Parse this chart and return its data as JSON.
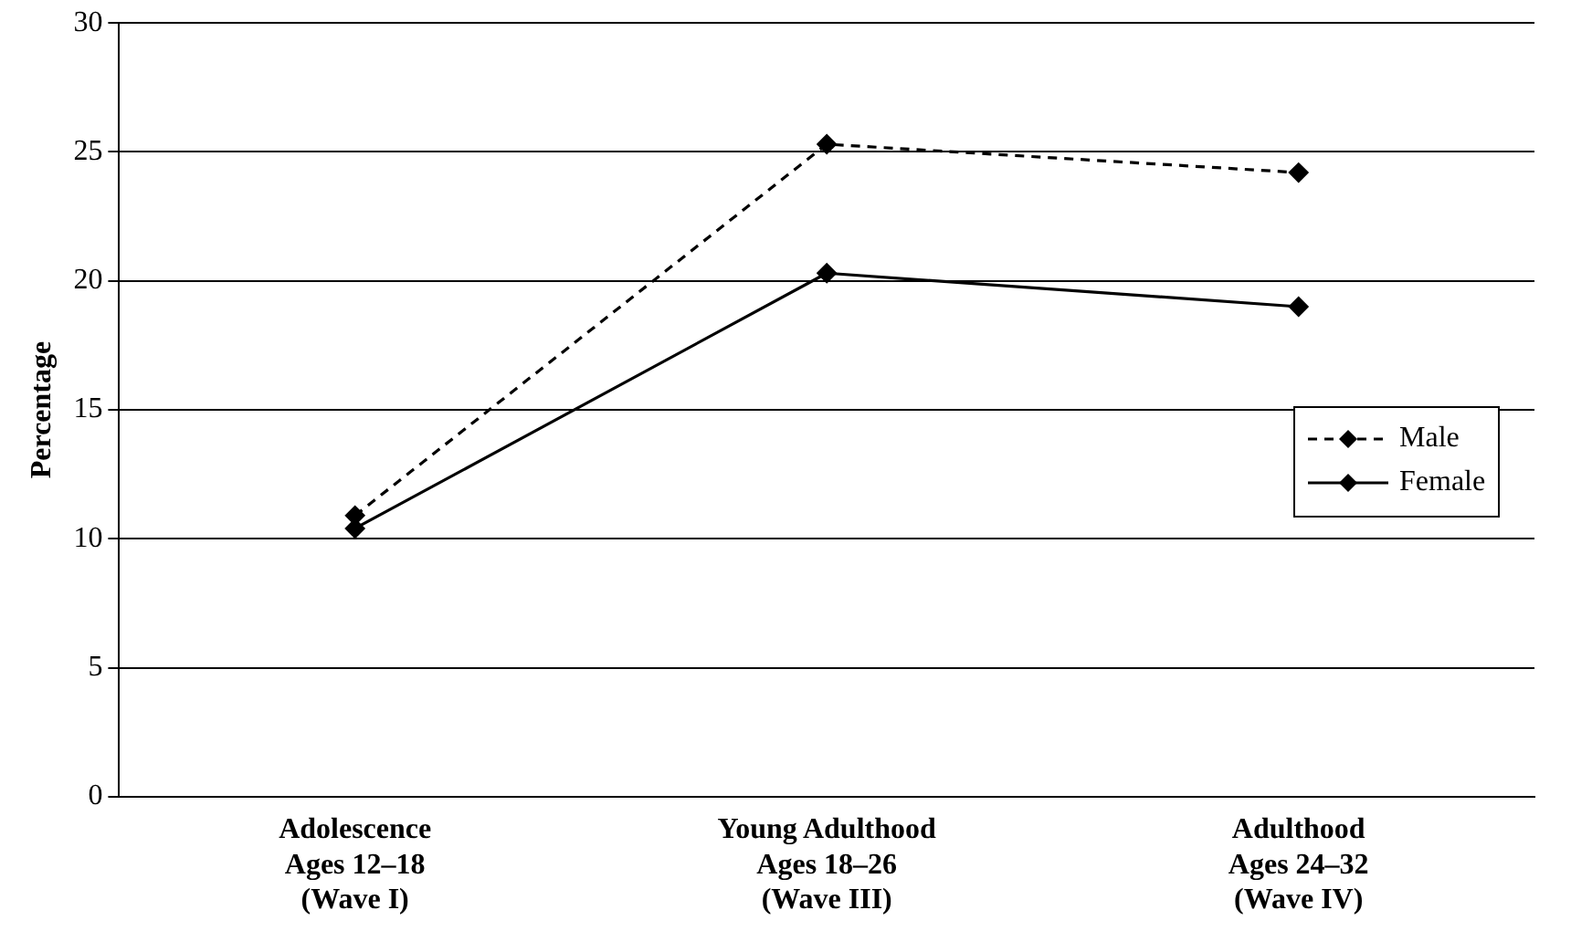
{
  "chart_data": {
    "type": "line",
    "ylabel": "Percentage",
    "categories": [
      "Adolescence\nAges 12–18\n(Wave I)",
      "Young Adulthood\nAges 18–26\n(Wave III)",
      "Adulthood\nAges 24–32\n(Wave IV)"
    ],
    "series": [
      {
        "name": "Male",
        "color": "#000000",
        "values": [
          10.9,
          25.3,
          24.2
        ],
        "line_style": "dashed"
      },
      {
        "name": "Female",
        "color": "#000000",
        "values": [
          10.4,
          20.3,
          19.0
        ],
        "line_style": "solid"
      }
    ],
    "ylim": [
      0,
      30
    ],
    "yticks": [
      0,
      5,
      10,
      15,
      20,
      25,
      30
    ],
    "grid": "y",
    "legend": "right",
    "marker": "diamond"
  }
}
